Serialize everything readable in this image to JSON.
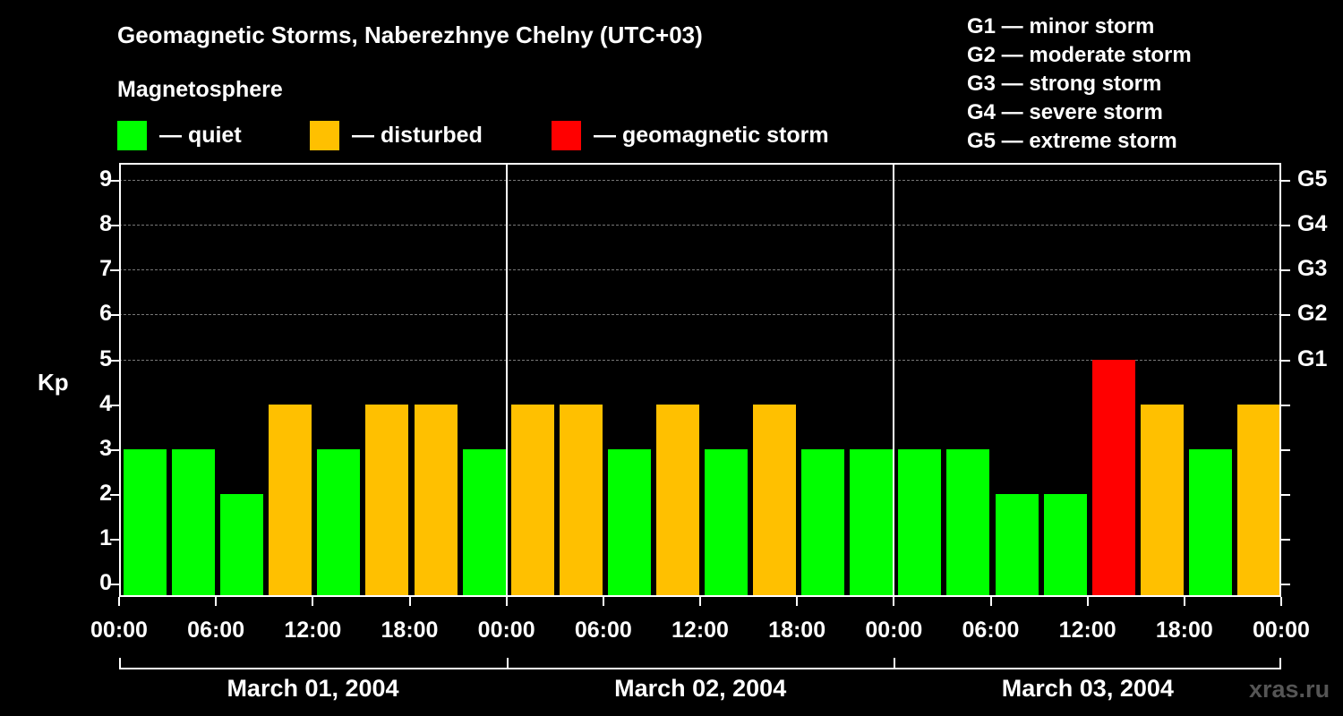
{
  "chart_data": {
    "type": "bar",
    "title": "Geomagnetic Storms, Naberezhnye Chelny (UTC+03)",
    "subtitle": "Magnetosphere",
    "ylabel": "Kp",
    "xlabel": "",
    "ylim": [
      0,
      9
    ],
    "yticks": [
      "0",
      "1",
      "2",
      "3",
      "4",
      "5",
      "6",
      "7",
      "8",
      "9"
    ],
    "right_ticks": [
      {
        "kp": 5,
        "label": "G1"
      },
      {
        "kp": 6,
        "label": "G2"
      },
      {
        "kp": 7,
        "label": "G3"
      },
      {
        "kp": 8,
        "label": "G4"
      },
      {
        "kp": 9,
        "label": "G5"
      }
    ],
    "grid": true,
    "xticks": [
      "00:00",
      "06:00",
      "12:00",
      "18:00",
      "00:00",
      "06:00",
      "12:00",
      "18:00",
      "00:00",
      "06:00",
      "12:00",
      "18:00",
      "00:00"
    ],
    "days": [
      "March 01, 2004",
      "March 02, 2004",
      "March 03, 2004"
    ],
    "interval_hours": 3,
    "values": [
      3,
      3,
      2,
      4,
      3,
      4,
      4,
      3,
      4,
      4,
      3,
      4,
      3,
      4,
      3,
      3,
      3,
      3,
      2,
      2,
      5,
      4,
      3,
      4
    ],
    "legend": [
      {
        "label": "— quiet",
        "color": "#00ff00"
      },
      {
        "label": "— disturbed",
        "color": "#ffc000"
      },
      {
        "label": "— geomagnetic storm",
        "color": "#ff0000"
      }
    ],
    "color_rule": {
      "quiet_max": 3,
      "disturbed": 4,
      "storm_min": 5
    }
  },
  "header": {
    "title": "Geomagnetic Storms, Naberezhnye Chelny (UTC+03)",
    "subtitle": "Magnetosphere"
  },
  "legend": {
    "quiet": "— quiet",
    "disturbed": "— disturbed",
    "storm": "— geomagnetic storm"
  },
  "scale": [
    "G1 — minor storm",
    "G2 — moderate storm",
    "G3 — strong storm",
    "G4 — severe storm",
    "G5 — extreme storm"
  ],
  "axis": {
    "ylabel": "Kp"
  },
  "colors": {
    "quiet": "#00ff00",
    "disturbed": "#ffc000",
    "storm": "#ff0000"
  },
  "watermark": "xras.ru"
}
